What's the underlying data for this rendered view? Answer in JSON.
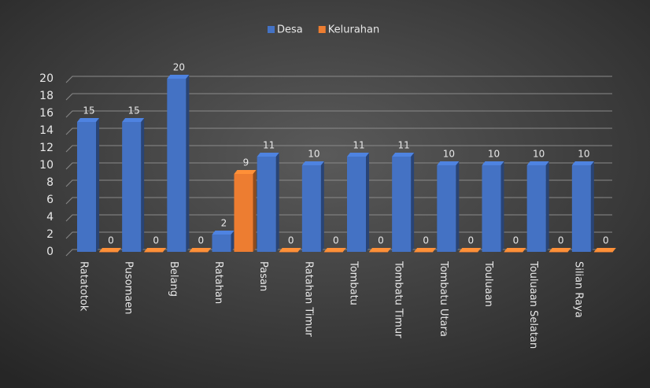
{
  "chart_data": {
    "type": "bar",
    "categories": [
      "Ratatotok",
      "Pusomaen",
      "Belang",
      "Ratahan",
      "Pasan",
      "Ratahan Timur",
      "Tombatu",
      "Tombatu Timur",
      "Tombatu Utara",
      "Touluaan",
      "Touluaan Selatan",
      "Silian Raya"
    ],
    "series": [
      {
        "name": "Desa",
        "color": "#4472c4",
        "values": [
          15,
          15,
          20,
          2,
          11,
          10,
          11,
          11,
          10,
          10,
          10,
          10
        ]
      },
      {
        "name": "Kelurahan",
        "color": "#ed7d31",
        "values": [
          0,
          0,
          0,
          9,
          0,
          0,
          0,
          0,
          0,
          0,
          0,
          0
        ]
      }
    ],
    "ylim": [
      0,
      20
    ],
    "yticks": [
      0,
      2,
      4,
      6,
      8,
      10,
      12,
      14,
      16,
      18,
      20
    ],
    "grid": true,
    "legend": "top"
  }
}
